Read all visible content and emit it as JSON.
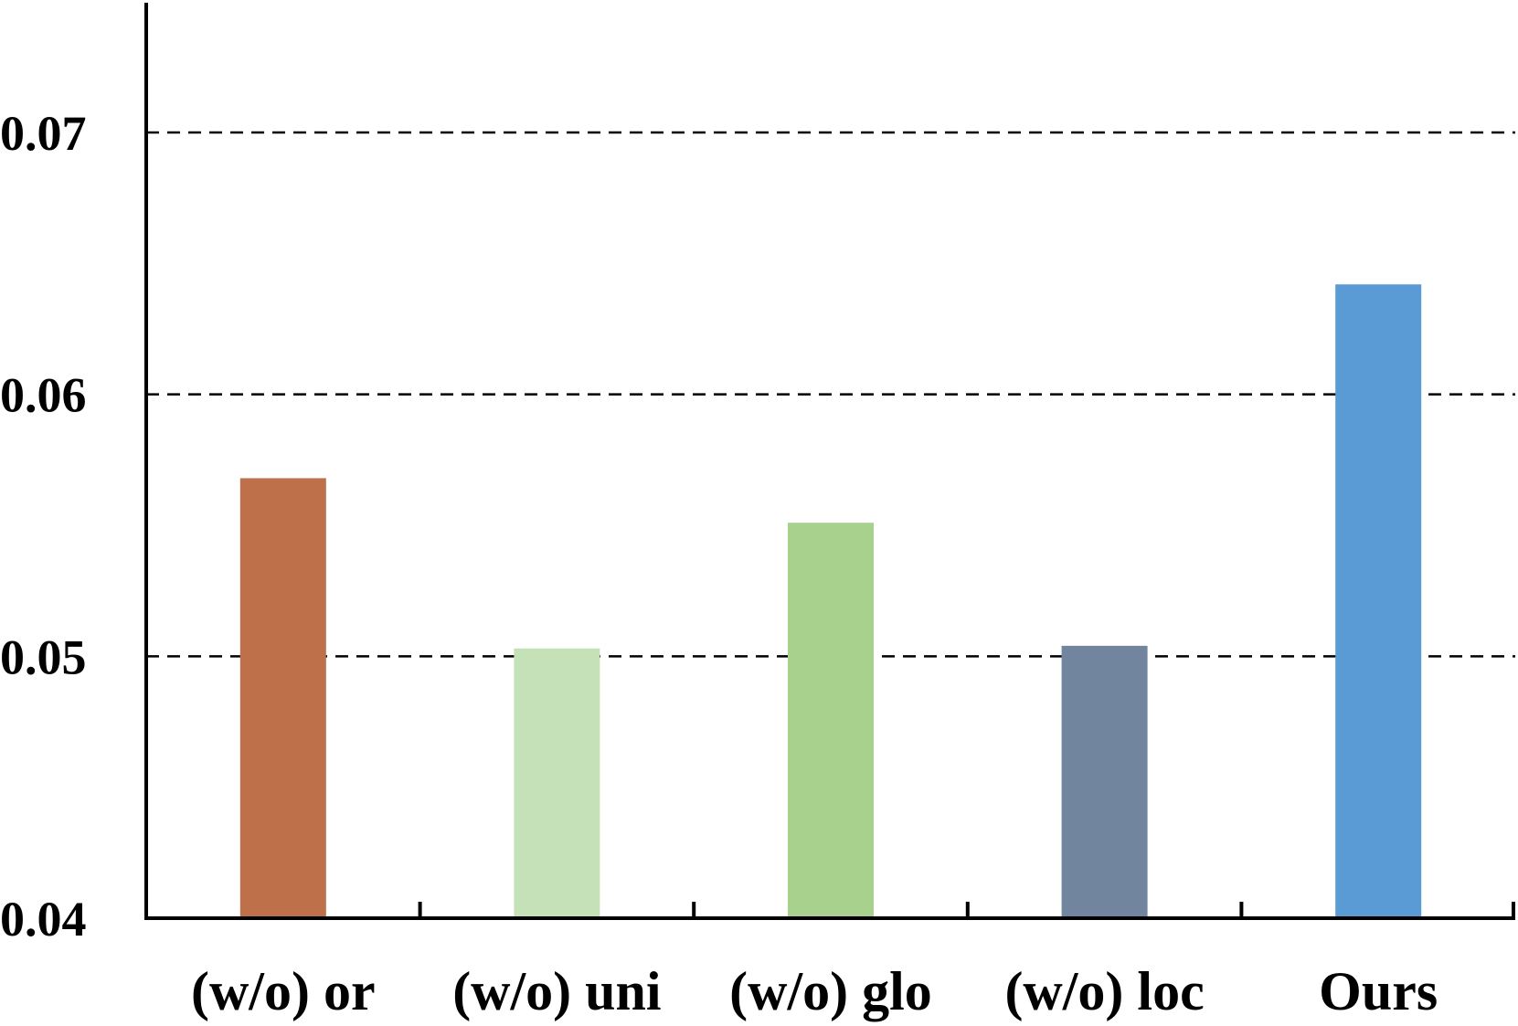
{
  "chart_data": {
    "type": "bar",
    "categories": [
      "(w/o) or",
      "(w/o) uni",
      "(w/o) glo",
      "(w/o) loc",
      "Ours"
    ],
    "values": [
      0.0568,
      0.0503,
      0.0551,
      0.0504,
      0.0642
    ],
    "colors": [
      "#BD7049",
      "#C5E1B7",
      "#A9D18E",
      "#71869E",
      "#5B9BD5"
    ],
    "ylim": [
      0.04,
      0.075
    ],
    "yticks": [
      "0.04",
      "0.05",
      "0.06",
      "0.07"
    ],
    "ytick_values": [
      0.04,
      0.05,
      0.06,
      0.07
    ],
    "gridlines": [
      0.05,
      0.06,
      0.07
    ],
    "grid": "dashed-horizontal",
    "title": "",
    "xlabel": "",
    "ylabel": ""
  }
}
